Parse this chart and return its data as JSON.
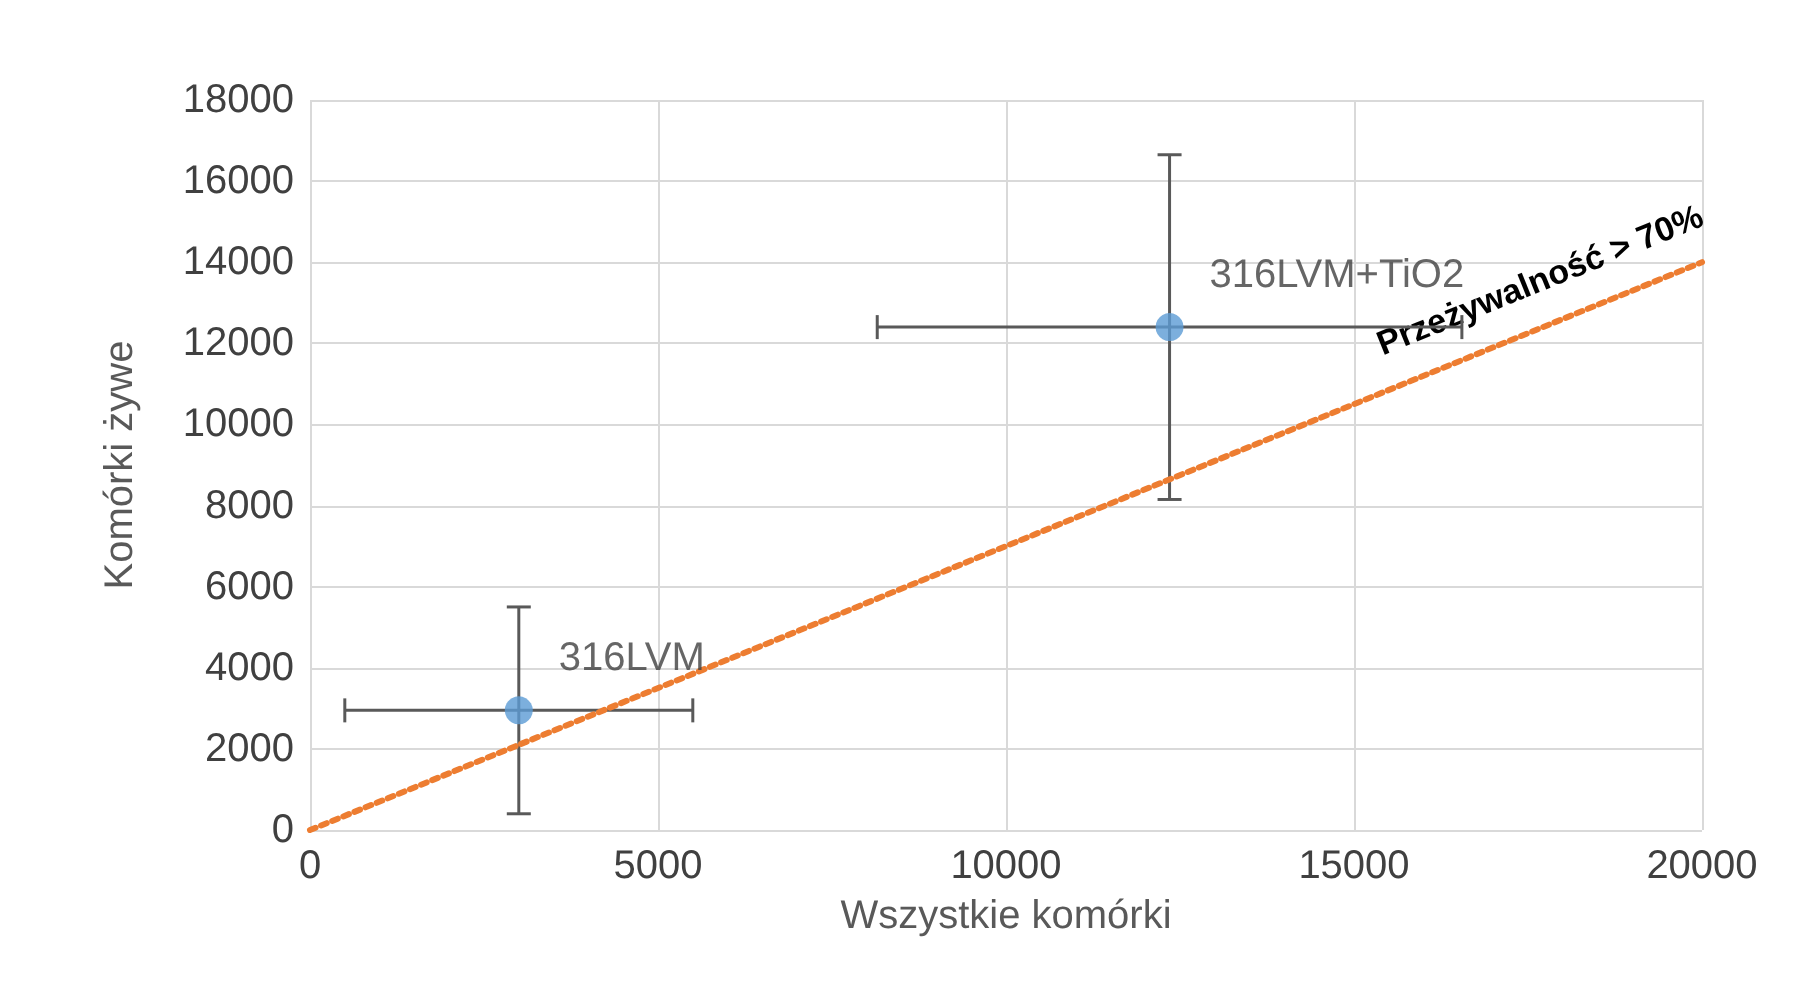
{
  "chart_data": {
    "type": "scatter",
    "xlabel": "Wszystkie komórki",
    "ylabel": "Komórki żywe",
    "xlim": [
      0,
      20000
    ],
    "xticks": [
      0,
      5000,
      10000,
      15000,
      20000
    ],
    "ylim": [
      0,
      18000
    ],
    "yticks": [
      0,
      2000,
      4000,
      6000,
      8000,
      10000,
      12000,
      14000,
      16000,
      18000
    ],
    "grid": true,
    "legend": false,
    "marker": "circle",
    "series": [
      {
        "name": "316LVM",
        "color": "#5b9bd5",
        "x": [
          3000
        ],
        "values": [
          2950
        ],
        "errors": [
          2550
        ],
        "xerrors": [
          2500
        ]
      },
      {
        "name": "316LVM+TiO2",
        "color": "#5b9bd5",
        "x": [
          12350
        ],
        "values": [
          12400
        ],
        "errors": [
          4250
        ],
        "xerrors": [
          4200
        ]
      },
      {
        "type": "line",
        "color": "#ed7d31",
        "line_style": "dotted",
        "marker": "none",
        "x": [
          0,
          20000
        ],
        "values": [
          0,
          14000
        ]
      }
    ],
    "annotations": [
      "Przeżywalność > 70%"
    ]
  }
}
